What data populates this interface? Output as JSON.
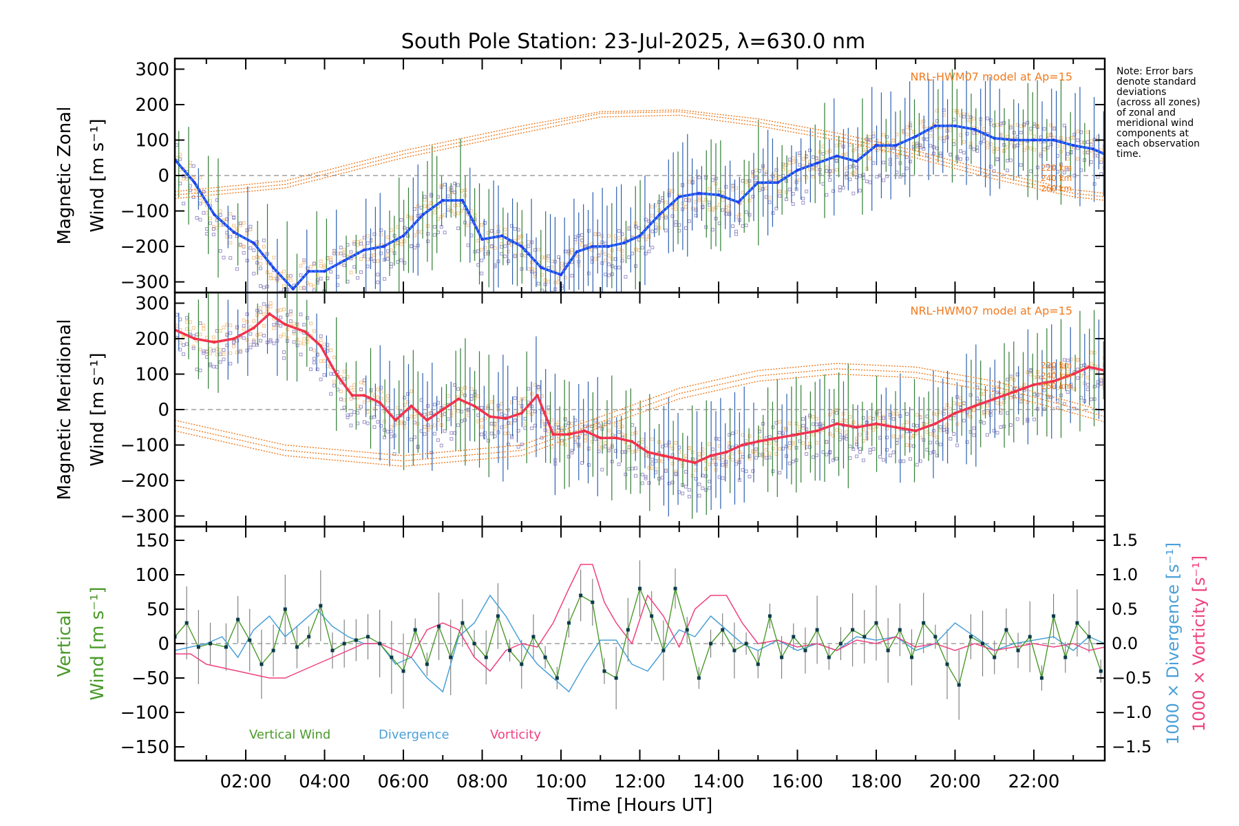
{
  "title": "South Pole Station: 23-Jul-2025, λ=630.0 nm",
  "note": [
    "Note: Error bars",
    "denote standard",
    "deviations",
    "(across all zones)",
    "of zonal and",
    "meridional wind",
    "components at",
    "each observation",
    "time."
  ],
  "xaxis": {
    "label": "Time [Hours UT]",
    "range": [
      0.2,
      23.8
    ],
    "ticks": [
      2,
      4,
      6,
      8,
      10,
      12,
      14,
      16,
      18,
      20,
      22
    ],
    "tick_labels": [
      "02:00",
      "04:00",
      "06:00",
      "08:00",
      "10:00",
      "12:00",
      "14:00",
      "16:00",
      "18:00",
      "20:00",
      "22:00"
    ]
  },
  "colors": {
    "zonal": "#1f3ff0",
    "zonal_cyan": "#2aa7e8",
    "meridional": "#f03042",
    "meridional_pink": "#f33c7a",
    "vertical": "#4a9a2a",
    "divergence": "#4aa0d8",
    "vorticity": "#f04080",
    "model": "#f07a1e",
    "errorbar_blue": "#2b5fb0",
    "errorbar_green": "#2e7d32",
    "scatter_lavender": "#9b93c8",
    "scatter_peach": "#f5c58c",
    "zero_line": "#8a8a8a"
  },
  "chart_data": [
    {
      "type": "line",
      "panel": "zonal",
      "ylabel": [
        "Magnetic Zonal",
        "Wind [m s⁻¹]"
      ],
      "ylim": [
        -330,
        330
      ],
      "yticks": [
        -300,
        -200,
        -100,
        0,
        100,
        200,
        300
      ],
      "ytick_labels": [
        "−300",
        "−200",
        "−100",
        "0",
        "100",
        "200",
        "300"
      ],
      "model_label": "NRL-HWM07 model at Ap=15",
      "model_altitude_labels": [
        "220 km",
        "240 km",
        "260 km"
      ],
      "series": [
        {
          "name": "Magnetic Zonal Wind",
          "x": [
            0.2,
            0.7,
            1.2,
            1.7,
            2.2,
            2.7,
            3.2,
            3.6,
            4.0,
            4.5,
            5.0,
            5.5,
            6.0,
            6.5,
            7.0,
            7.5,
            8.0,
            8.5,
            9.0,
            9.5,
            10.0,
            10.4,
            10.8,
            11.2,
            11.6,
            12.0,
            12.5,
            13.0,
            13.5,
            14.0,
            14.5,
            15.0,
            15.5,
            16.0,
            16.5,
            17.0,
            17.5,
            18.0,
            18.5,
            19.0,
            19.5,
            20.0,
            20.5,
            21.0,
            21.5,
            22.0,
            22.5,
            23.0,
            23.5,
            23.8
          ],
          "values": [
            45,
            -20,
            -110,
            -160,
            -190,
            -260,
            -320,
            -270,
            -270,
            -240,
            -210,
            -200,
            -170,
            -110,
            -70,
            -70,
            -180,
            -170,
            -200,
            -260,
            -280,
            -215,
            -200,
            -200,
            -190,
            -170,
            -110,
            -60,
            -50,
            -55,
            -75,
            -20,
            -20,
            15,
            35,
            55,
            40,
            85,
            85,
            110,
            140,
            140,
            130,
            105,
            100,
            100,
            100,
            85,
            75,
            60
          ]
        },
        {
          "name": "NRL-HWM07 220 km",
          "x": [
            0.2,
            3,
            6,
            9,
            11,
            13,
            15,
            17,
            19,
            21,
            23,
            23.8
          ],
          "values": [
            -65,
            -35,
            50,
            120,
            165,
            170,
            140,
            100,
            50,
            -10,
            -60,
            -70
          ]
        },
        {
          "name": "NRL-HWM07 240 km",
          "x": [
            0.2,
            3,
            6,
            9,
            11,
            13,
            15,
            17,
            19,
            21,
            23,
            23.8
          ],
          "values": [
            -55,
            -25,
            60,
            130,
            175,
            180,
            150,
            110,
            60,
            0,
            -50,
            -60
          ]
        },
        {
          "name": "NRL-HWM07 260 km",
          "x": [
            0.2,
            3,
            6,
            9,
            11,
            13,
            15,
            17,
            19,
            21,
            23,
            23.8
          ],
          "values": [
            -45,
            -15,
            70,
            140,
            180,
            185,
            160,
            120,
            70,
            10,
            -40,
            -50
          ]
        }
      ]
    },
    {
      "type": "line",
      "panel": "meridional",
      "ylabel": [
        "Magnetic Meridional",
        "Wind [m s⁻¹]"
      ],
      "ylim": [
        -330,
        330
      ],
      "yticks": [
        -300,
        -200,
        -100,
        0,
        100,
        200,
        300
      ],
      "ytick_labels": [
        "−300",
        "−200",
        "−100",
        "0",
        "100",
        "200",
        "300"
      ],
      "model_label": "NRL-HWM07 model at Ap=15",
      "model_altitude_labels": [
        "220 km",
        "240 km",
        "260 km"
      ],
      "series": [
        {
          "name": "Magnetic Meridional Wind",
          "x": [
            0.2,
            0.7,
            1.2,
            1.7,
            2.2,
            2.6,
            3.0,
            3.5,
            3.9,
            4.3,
            4.7,
            5.0,
            5.4,
            5.8,
            6.2,
            6.6,
            7.0,
            7.4,
            7.8,
            8.2,
            8.6,
            9.0,
            9.4,
            9.8,
            10.2,
            10.6,
            11.0,
            11.4,
            11.8,
            12.2,
            12.6,
            13.0,
            13.4,
            13.8,
            14.2,
            14.6,
            15.0,
            15.5,
            16.0,
            16.5,
            17.0,
            17.5,
            18.0,
            18.5,
            19.0,
            19.5,
            20.0,
            20.5,
            21.0,
            21.5,
            22.0,
            22.5,
            23.0,
            23.4,
            23.8
          ],
          "values": [
            225,
            200,
            190,
            200,
            230,
            270,
            240,
            220,
            180,
            100,
            40,
            40,
            20,
            -30,
            10,
            -30,
            0,
            30,
            10,
            -20,
            -25,
            -10,
            40,
            -70,
            -70,
            -60,
            -80,
            -80,
            -90,
            -120,
            -130,
            -140,
            -150,
            -130,
            -120,
            -100,
            -90,
            -80,
            -70,
            -60,
            -40,
            -50,
            -40,
            -50,
            -60,
            -40,
            -10,
            10,
            30,
            50,
            70,
            80,
            100,
            120,
            110
          ]
        },
        {
          "name": "NRL-HWM07 220 km",
          "x": [
            0.2,
            3,
            6,
            9,
            11,
            13,
            15,
            17,
            19,
            21,
            23,
            23.8
          ],
          "values": [
            -30,
            -100,
            -130,
            -100,
            -20,
            60,
            110,
            130,
            120,
            80,
            20,
            -5
          ]
        },
        {
          "name": "NRL-HWM07 240 km",
          "x": [
            0.2,
            3,
            6,
            9,
            11,
            13,
            15,
            17,
            19,
            21,
            23,
            23.8
          ],
          "values": [
            -45,
            -115,
            -145,
            -115,
            -35,
            45,
            95,
            115,
            105,
            65,
            5,
            -20
          ]
        },
        {
          "name": "NRL-HWM07 260 km",
          "x": [
            0.2,
            3,
            6,
            9,
            11,
            13,
            15,
            17,
            19,
            21,
            23,
            23.8
          ],
          "values": [
            -60,
            -130,
            -160,
            -130,
            -50,
            30,
            80,
            100,
            90,
            50,
            -10,
            -35
          ]
        }
      ]
    },
    {
      "type": "line",
      "panel": "vertical",
      "ylabel": [
        "Vertical",
        "Wind [m s⁻¹]"
      ],
      "ylim": [
        -170,
        170
      ],
      "yticks": [
        -150,
        -100,
        -50,
        0,
        50,
        100,
        150
      ],
      "ytick_labels": [
        "−150",
        "−100",
        "−50",
        "0",
        "50",
        "100",
        "150"
      ],
      "y2label_divergence": "1000 × Divergence [s⁻¹]",
      "y2label_vorticity": "1000 × Vorticity [s⁻¹]",
      "y2lim": [
        -1.7,
        1.7
      ],
      "y2ticks": [
        -1.5,
        -1.0,
        -0.5,
        0.0,
        0.5,
        1.0,
        1.5
      ],
      "y2tick_labels": [
        "−1.5",
        "−1.0",
        "−0.5",
        "0.0",
        "0.5",
        "1.0",
        "1.5"
      ],
      "legend": [
        "Vertical Wind",
        "Divergence",
        "Vorticity"
      ],
      "series": [
        {
          "name": "Vertical Wind",
          "x": [
            0.2,
            0.5,
            0.8,
            1.1,
            1.5,
            1.8,
            2.1,
            2.4,
            2.7,
            3.0,
            3.3,
            3.6,
            3.9,
            4.2,
            4.5,
            4.8,
            5.1,
            5.4,
            5.7,
            6.0,
            6.3,
            6.6,
            6.9,
            7.2,
            7.5,
            7.8,
            8.1,
            8.4,
            8.7,
            9.0,
            9.3,
            9.6,
            9.9,
            10.2,
            10.5,
            10.8,
            11.1,
            11.4,
            11.7,
            12.0,
            12.3,
            12.6,
            12.9,
            13.2,
            13.5,
            13.8,
            14.1,
            14.4,
            14.7,
            15.0,
            15.3,
            15.6,
            15.9,
            16.2,
            16.5,
            16.8,
            17.1,
            17.4,
            17.7,
            18.0,
            18.3,
            18.6,
            18.9,
            19.2,
            19.5,
            19.8,
            20.1,
            20.4,
            20.7,
            21.0,
            21.3,
            21.6,
            21.9,
            22.2,
            22.5,
            22.8,
            23.1,
            23.4,
            23.7
          ],
          "values": [
            10,
            30,
            -5,
            0,
            -5,
            35,
            5,
            -30,
            -10,
            50,
            -5,
            10,
            55,
            -10,
            0,
            5,
            10,
            0,
            -20,
            -40,
            20,
            -30,
            25,
            -20,
            30,
            0,
            -20,
            40,
            -10,
            -30,
            10,
            -20,
            -50,
            30,
            70,
            60,
            -40,
            -50,
            20,
            80,
            40,
            -10,
            80,
            20,
            -50,
            0,
            20,
            -10,
            0,
            -30,
            40,
            -20,
            10,
            -10,
            20,
            -20,
            0,
            20,
            10,
            30,
            -10,
            20,
            -20,
            30,
            10,
            -30,
            -60,
            10,
            0,
            -20,
            20,
            -10,
            10,
            -50,
            40,
            -20,
            30,
            10,
            -40
          ]
        },
        {
          "name": "Divergence",
          "x": [
            0.2,
            0.6,
            1.0,
            1.4,
            1.8,
            2.2,
            2.6,
            3.0,
            3.4,
            3.8,
            4.2,
            4.6,
            5.0,
            5.4,
            5.8,
            6.2,
            6.6,
            7.0,
            7.4,
            7.8,
            8.2,
            8.6,
            9.0,
            9.4,
            9.8,
            10.2,
            10.6,
            11.0,
            11.4,
            11.8,
            12.2,
            12.6,
            13.0,
            13.4,
            13.8,
            14.2,
            14.6,
            15.0,
            15.5,
            16.0,
            16.5,
            17.0,
            17.5,
            18.0,
            18.5,
            19.0,
            19.5,
            20.0,
            20.5,
            21.0,
            21.5,
            22.0,
            22.5,
            23.0,
            23.4,
            23.8
          ],
          "values": [
            -0.1,
            -0.05,
            0.0,
            0.1,
            -0.2,
            0.2,
            0.4,
            0.1,
            0.3,
            0.5,
            0.25,
            0.1,
            0.0,
            0.0,
            -0.3,
            -0.2,
            -0.5,
            -0.7,
            0.1,
            0.3,
            0.7,
            0.4,
            0.0,
            -0.3,
            -0.5,
            -0.7,
            -0.3,
            0.05,
            0.05,
            -0.3,
            -0.4,
            -0.1,
            0.2,
            0.1,
            0.4,
            0.2,
            0.0,
            -0.1,
            0.05,
            -0.1,
            0.0,
            -0.1,
            0.1,
            0.05,
            0.1,
            -0.1,
            0.0,
            0.3,
            0.1,
            -0.1,
            0.0,
            0.05,
            0.1,
            -0.1,
            0.1,
            0.0
          ]
        },
        {
          "name": "Vorticity",
          "x": [
            0.2,
            0.6,
            1.0,
            1.4,
            1.8,
            2.2,
            2.6,
            3.0,
            3.4,
            3.8,
            4.2,
            4.6,
            5.0,
            5.4,
            5.8,
            6.2,
            6.6,
            7.0,
            7.4,
            7.8,
            8.2,
            8.6,
            9.0,
            9.4,
            9.8,
            10.2,
            10.5,
            10.8,
            11.1,
            11.4,
            11.8,
            12.2,
            12.6,
            13.0,
            13.4,
            13.8,
            14.2,
            14.6,
            15.0,
            15.5,
            16.0,
            16.5,
            17.0,
            17.5,
            18.0,
            18.5,
            19.0,
            19.5,
            20.0,
            20.5,
            21.0,
            21.5,
            22.0,
            22.5,
            23.0,
            23.4,
            23.8
          ],
          "values": [
            -0.15,
            -0.15,
            -0.3,
            -0.35,
            -0.4,
            -0.45,
            -0.5,
            -0.5,
            -0.4,
            -0.3,
            -0.2,
            -0.1,
            0.0,
            0.0,
            -0.1,
            -0.2,
            0.2,
            0.3,
            0.2,
            -0.2,
            -0.4,
            -0.1,
            0.0,
            -0.05,
            0.3,
            0.8,
            1.15,
            1.15,
            0.6,
            0.3,
            0.0,
            0.7,
            0.4,
            -0.05,
            0.5,
            0.7,
            0.7,
            0.3,
            0.0,
            0.05,
            -0.05,
            0.0,
            -0.1,
            0.05,
            0.0,
            0.1,
            -0.05,
            0.0,
            -0.1,
            0.0,
            -0.1,
            -0.05,
            0.0,
            -0.05,
            0.0,
            -0.1,
            -0.05
          ]
        }
      ]
    }
  ]
}
